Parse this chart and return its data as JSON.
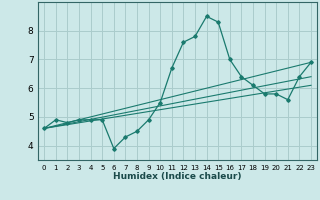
{
  "xlabel": "Humidex (Indice chaleur)",
  "bg_color": "#cce8e8",
  "grid_color": "#aacccc",
  "line_color": "#1a7a6e",
  "xlim": [
    -0.5,
    23.5
  ],
  "ylim": [
    3.5,
    9.0
  ],
  "yticks": [
    4,
    5,
    6,
    7,
    8
  ],
  "xticks": [
    0,
    1,
    2,
    3,
    4,
    5,
    6,
    7,
    8,
    9,
    10,
    11,
    12,
    13,
    14,
    15,
    16,
    17,
    18,
    19,
    20,
    21,
    22,
    23
  ],
  "main_line_x": [
    0,
    1,
    2,
    3,
    4,
    5,
    6,
    7,
    8,
    9,
    10,
    11,
    12,
    13,
    14,
    15,
    16,
    17,
    18,
    19,
    20,
    21,
    22,
    23
  ],
  "main_line_y": [
    4.6,
    4.9,
    4.8,
    4.9,
    4.9,
    4.9,
    3.9,
    4.3,
    4.5,
    4.9,
    5.5,
    6.7,
    7.6,
    7.8,
    8.5,
    8.3,
    7.0,
    6.4,
    6.1,
    5.8,
    5.8,
    5.6,
    6.4,
    6.9
  ],
  "ref_lines": [
    {
      "x": [
        0,
        23
      ],
      "y": [
        4.6,
        6.1
      ]
    },
    {
      "x": [
        0,
        23
      ],
      "y": [
        4.6,
        6.4
      ]
    },
    {
      "x": [
        0,
        23
      ],
      "y": [
        4.6,
        6.9
      ]
    }
  ],
  "xlabel_fontsize": 6.5,
  "ytick_fontsize": 6.5,
  "xtick_fontsize": 5.0
}
